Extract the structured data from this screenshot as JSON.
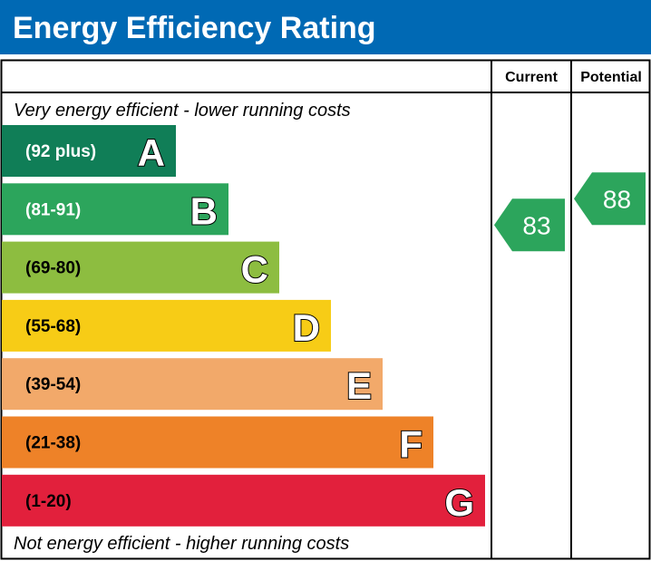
{
  "chart_data": {
    "type": "bar",
    "title": "Energy Efficiency Rating",
    "columns": [
      "Current",
      "Potential"
    ],
    "top_note": "Very energy efficient - lower running costs",
    "bottom_note": "Not energy efficient - higher running costs",
    "bands": [
      {
        "letter": "A",
        "range": "(92 plus)",
        "color": "#107e57",
        "text_color": "#ffffff"
      },
      {
        "letter": "B",
        "range": "(81-91)",
        "color": "#2ca55c",
        "text_color": "#ffffff"
      },
      {
        "letter": "C",
        "range": "(69-80)",
        "color": "#8dbd40",
        "text_color": "#000000"
      },
      {
        "letter": "D",
        "range": "(55-68)",
        "color": "#f7cc16",
        "text_color": "#000000"
      },
      {
        "letter": "E",
        "range": "(39-54)",
        "color": "#f2a96a",
        "text_color": "#000000"
      },
      {
        "letter": "F",
        "range": "(21-38)",
        "color": "#ee8228",
        "text_color": "#000000"
      },
      {
        "letter": "G",
        "range": "(1-20)",
        "color": "#e2203c",
        "text_color": "#000000"
      }
    ],
    "current": {
      "value": 83,
      "band": "B",
      "color": "#2ca55c"
    },
    "potential": {
      "value": 88,
      "band": "B",
      "color": "#2ca55c"
    }
  },
  "header_color": "#0069b4"
}
